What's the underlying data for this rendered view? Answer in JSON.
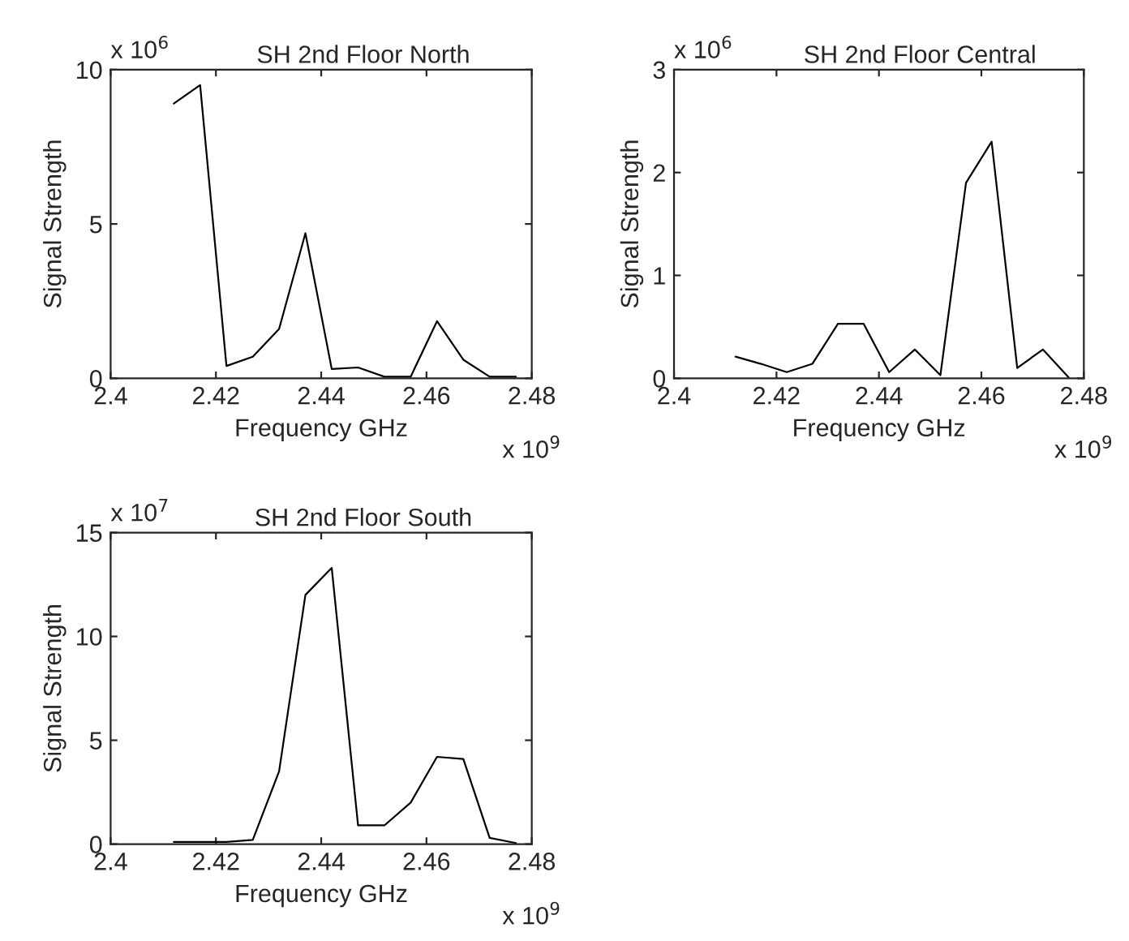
{
  "chart_data": [
    {
      "type": "line",
      "title": "SH 2nd Floor North",
      "xlabel": "Frequency GHz",
      "ylabel": "Signal Strength",
      "annotations": [
        "x 10$^{6}$",
        "x 10$^{9}$"
      ],
      "x": [
        2.412,
        2.417,
        2.422,
        2.427,
        2.432,
        2.437,
        2.442,
        2.447,
        2.452,
        2.457,
        2.462,
        2.467,
        2.472,
        2.477
      ],
      "series": [
        {
          "color": "#000000",
          "values": [
            8.9,
            9.5,
            0.4,
            0.7,
            1.6,
            4.7,
            0.3,
            0.35,
            0.05,
            0.05,
            1.85,
            0.6,
            0.05,
            0.05
          ]
        }
      ],
      "xlim": [
        2.4,
        2.48
      ],
      "xticks": [
        2.4,
        2.42,
        2.44,
        2.46,
        2.48
      ],
      "ylim": [
        0,
        10
      ],
      "yticks": [
        0,
        5,
        10
      ],
      "grid": false,
      "marker": "none",
      "line_style": "solid"
    },
    {
      "type": "line",
      "title": "SH 2nd Floor Central",
      "xlabel": "Frequency GHz",
      "ylabel": "Signal Strength",
      "annotations": [
        "x 10$^{6}$",
        "x 10$^{9}$"
      ],
      "x": [
        2.412,
        2.417,
        2.422,
        2.427,
        2.432,
        2.437,
        2.442,
        2.447,
        2.452,
        2.457,
        2.462,
        2.467,
        2.472,
        2.477
      ],
      "series": [
        {
          "color": "#000000",
          "values": [
            0.21,
            0.14,
            0.06,
            0.14,
            0.53,
            0.53,
            0.06,
            0.28,
            0.03,
            1.9,
            2.3,
            0.1,
            0.28,
            0.01
          ]
        }
      ],
      "xlim": [
        2.4,
        2.48
      ],
      "xticks": [
        2.4,
        2.42,
        2.44,
        2.46,
        2.48
      ],
      "ylim": [
        0,
        3
      ],
      "yticks": [
        0,
        1,
        2,
        3
      ],
      "grid": false,
      "marker": "none",
      "line_style": "solid"
    },
    {
      "type": "line",
      "title": "SH 2nd Floor South",
      "xlabel": "Frequency GHz",
      "ylabel": "Signal Strength",
      "annotations": [
        "x 10$^{7}$",
        "x 10$^{9}$"
      ],
      "x": [
        2.412,
        2.417,
        2.422,
        2.427,
        2.432,
        2.437,
        2.442,
        2.447,
        2.452,
        2.457,
        2.462,
        2.467,
        2.472,
        2.477
      ],
      "series": [
        {
          "color": "#000000",
          "values": [
            0.1,
            0.1,
            0.1,
            0.2,
            3.5,
            12,
            13.3,
            0.9,
            0.9,
            2,
            4.2,
            4.1,
            0.3,
            0.05
          ]
        }
      ],
      "xlim": [
        2.4,
        2.48
      ],
      "xticks": [
        2.4,
        2.42,
        2.44,
        2.46,
        2.48
      ],
      "ylim": [
        0,
        15
      ],
      "yticks": [
        0,
        5,
        10,
        15
      ],
      "grid": false,
      "marker": "none",
      "line_style": "solid"
    }
  ]
}
